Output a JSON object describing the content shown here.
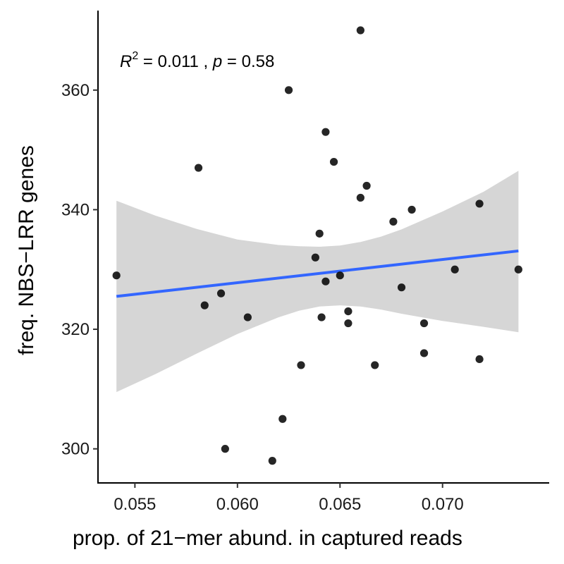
{
  "chart_data": {
    "type": "scatter",
    "xlabel": "prop. of 21−mer abund. in captured reads",
    "ylabel": "freq. NBS−LRR genes",
    "xlim": [
      0.0532,
      0.0752
    ],
    "ylim": [
      294.3,
      373.3
    ],
    "x_ticks": [
      0.055,
      0.06,
      0.065,
      0.07
    ],
    "x_tick_labels": [
      "0.055",
      "0.060",
      "0.065",
      "0.070"
    ],
    "y_ticks": [
      300,
      320,
      340,
      360
    ],
    "y_tick_labels": [
      "300",
      "320",
      "340",
      "360"
    ],
    "annotation": {
      "r_symbol": "R",
      "r_exponent": "2",
      "r_value": " = 0.011 , ",
      "p_symbol": "p",
      "p_value": " = 0.58"
    },
    "points": [
      {
        "x": 0.0541,
        "y": 329
      },
      {
        "x": 0.0581,
        "y": 347
      },
      {
        "x": 0.0584,
        "y": 324
      },
      {
        "x": 0.0592,
        "y": 326
      },
      {
        "x": 0.0594,
        "y": 300
      },
      {
        "x": 0.0605,
        "y": 322
      },
      {
        "x": 0.0617,
        "y": 298
      },
      {
        "x": 0.0622,
        "y": 305
      },
      {
        "x": 0.0625,
        "y": 360
      },
      {
        "x": 0.0631,
        "y": 314
      },
      {
        "x": 0.0638,
        "y": 332
      },
      {
        "x": 0.064,
        "y": 336
      },
      {
        "x": 0.0641,
        "y": 322
      },
      {
        "x": 0.0643,
        "y": 353
      },
      {
        "x": 0.0643,
        "y": 328
      },
      {
        "x": 0.0647,
        "y": 348
      },
      {
        "x": 0.065,
        "y": 329
      },
      {
        "x": 0.0654,
        "y": 323
      },
      {
        "x": 0.0654,
        "y": 321
      },
      {
        "x": 0.066,
        "y": 370
      },
      {
        "x": 0.066,
        "y": 342
      },
      {
        "x": 0.0663,
        "y": 344
      },
      {
        "x": 0.0667,
        "y": 314
      },
      {
        "x": 0.0676,
        "y": 338
      },
      {
        "x": 0.068,
        "y": 327
      },
      {
        "x": 0.0685,
        "y": 340
      },
      {
        "x": 0.0691,
        "y": 321
      },
      {
        "x": 0.0691,
        "y": 316
      },
      {
        "x": 0.0706,
        "y": 330
      },
      {
        "x": 0.0718,
        "y": 341
      },
      {
        "x": 0.0718,
        "y": 315
      },
      {
        "x": 0.0737,
        "y": 330
      }
    ],
    "fit_line": {
      "x": [
        0.0541,
        0.0737
      ],
      "y": [
        325.5,
        333.1
      ]
    },
    "confidence_band": {
      "x": [
        0.0541,
        0.056,
        0.058,
        0.06,
        0.062,
        0.063,
        0.064,
        0.065,
        0.066,
        0.067,
        0.068,
        0.07,
        0.072,
        0.0737
      ],
      "upper": [
        341.5,
        339.0,
        336.8,
        335.0,
        334.1,
        333.9,
        333.8,
        334.0,
        334.6,
        335.5,
        336.7,
        339.7,
        343.0,
        346.5
      ],
      "lower": [
        309.5,
        312.5,
        315.9,
        319.2,
        322.0,
        323.1,
        323.8,
        324.0,
        323.8,
        323.3,
        322.6,
        321.4,
        320.4,
        319.5
      ]
    },
    "grid": false,
    "legend": "none",
    "colors": {
      "point": "#000000",
      "fit_line": "#3366ff",
      "band": "#d6d6d6",
      "axis": "#000000"
    }
  }
}
